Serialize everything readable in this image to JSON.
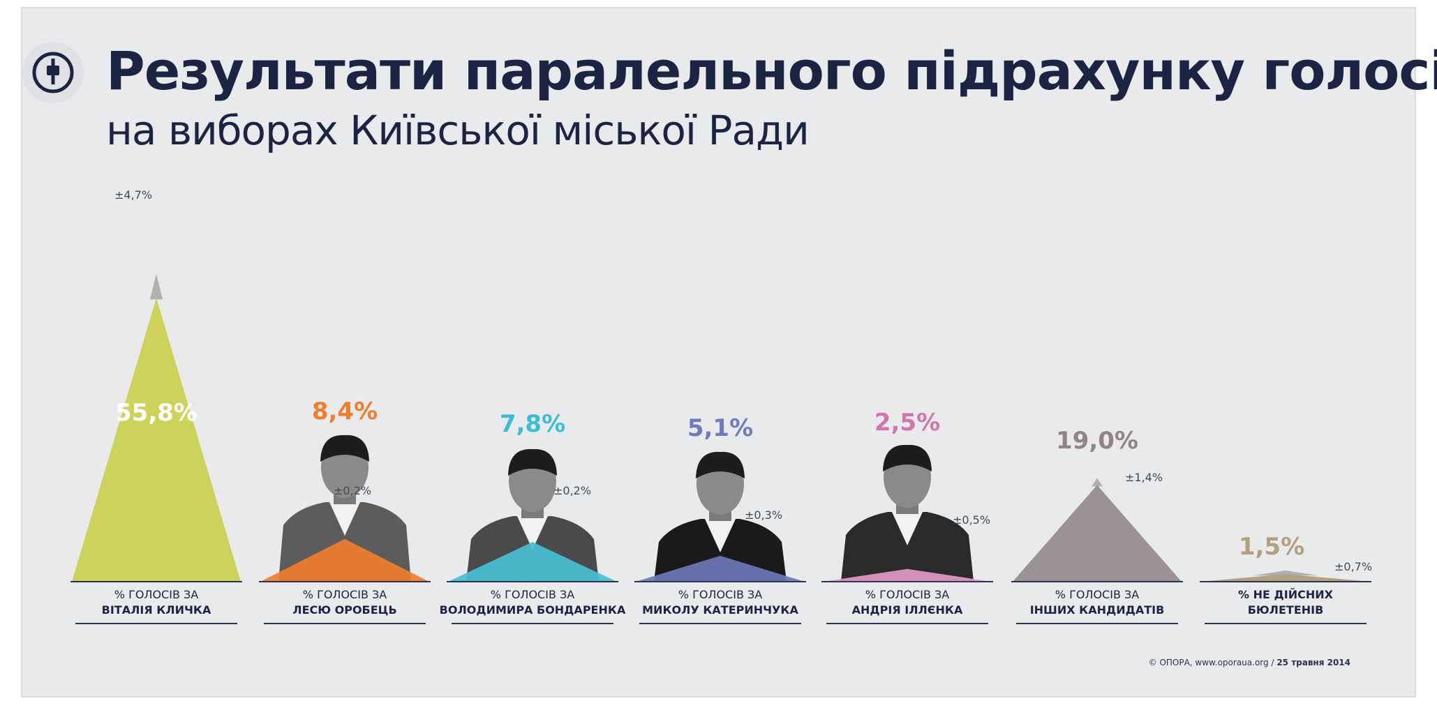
{
  "header": {
    "title": "Результати паралельного підрахунку голосів",
    "subtitle": "на виборах Київської міської Ради"
  },
  "footer": {
    "credit": "© ОПОРА, www.oporaua.org / ",
    "date": "25 травня 2014"
  },
  "chart_data": {
    "type": "bar",
    "title": "Результати паралельного підрахунку голосів",
    "subtitle": "на виборах Київської міської Ради",
    "ylim": [
      0,
      60
    ],
    "grid": false,
    "categories": [
      {
        "line1": "% ГОЛОСІВ ЗА",
        "line2": "ВІТАЛІЯ КЛИЧКА",
        "value": 55.8,
        "label": "55,8%",
        "error": 4.7,
        "error_label": "±4,7%",
        "color": "#cdd35a",
        "value_color": "#ffffff",
        "has_photo": true,
        "photo": "photo-vitali-klitschko"
      },
      {
        "line1": "% ГОЛОСІВ ЗА",
        "line2": "ЛЕСЮ ОРОБЕЦЬ",
        "value": 8.4,
        "label": "8,4%",
        "error": 0.2,
        "error_label": "±0,2%",
        "color": "#ef7f2e",
        "value_color": "#ef7f2e",
        "has_photo": true,
        "photo": "photo-lesia-orobets"
      },
      {
        "line1": "% ГОЛОСІВ ЗА",
        "line2": "ВОЛОДИМИРА БОНДАРЕНКА",
        "value": 7.8,
        "label": "7,8%",
        "error": 0.2,
        "error_label": "±0,2%",
        "color": "#47bfd4",
        "value_color": "#3bbdd2",
        "has_photo": true,
        "photo": "photo-volodymyr-bondarenko"
      },
      {
        "line1": "% ГОЛОСІВ ЗА",
        "line2": "МИКОЛУ КАТЕРИНЧУКА",
        "value": 5.1,
        "label": "5,1%",
        "error": 0.3,
        "error_label": "±0,3%",
        "color": "#6d78b8",
        "value_color": "#6d7cbf",
        "has_photo": true,
        "photo": "photo-mykola-katerynchuk"
      },
      {
        "line1": "% ГОЛОСІВ ЗА",
        "line2": "АНДРІЯ ІЛЛЄНКА",
        "value": 2.5,
        "label": "2,5%",
        "error": 0.5,
        "error_label": "±0,5%",
        "color": "#e29ac6",
        "value_color": "#cf76ad",
        "has_photo": true,
        "photo": "photo-andriy-illenko"
      },
      {
        "line1": "% ГОЛОСІВ ЗА",
        "line2": "ІНШИХ КАНДИДАТІВ",
        "value": 19.0,
        "label": "19,0%",
        "error": 1.4,
        "error_label": "±1,4%",
        "color": "#9b9294",
        "value_color": "#8f8487",
        "has_photo": false
      },
      {
        "line1": "% НЕ ДІЙСНИХ",
        "line2": "БЮЛЕТЕНІВ",
        "value": 1.5,
        "label": "1,5%",
        "error": 0.7,
        "error_label": "±0,7%",
        "color": "#b3a281",
        "value_color": "#b3a17d",
        "has_photo": false
      }
    ]
  }
}
